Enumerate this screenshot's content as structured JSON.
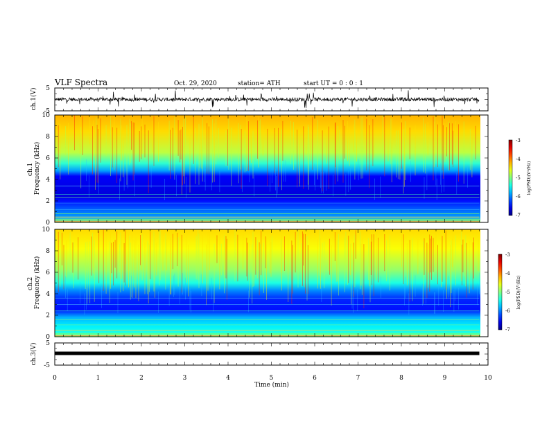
{
  "header": {
    "title": "VLF Spectra",
    "date": "Oct. 29, 2020",
    "station": "station= ATH",
    "start_ut": "start  UT =  0 : 0 : 1"
  },
  "chart_data": [
    {
      "type": "line",
      "name": "ch1-waveform",
      "ylabel": "ch.1(V)",
      "ylim": [
        -5,
        5
      ],
      "yticks": [
        "5",
        "-5"
      ],
      "xlim": [
        0,
        10
      ],
      "data_end_min": 9.8,
      "baseline_v": 0.0
    },
    {
      "type": "heatmap",
      "name": "ch1-spectrogram",
      "ylabel": "ch.1\nFrequency (kHz)",
      "ylim": [
        0,
        10
      ],
      "yticks": [
        "0",
        "2",
        "4",
        "6",
        "8",
        "10"
      ],
      "xlim": [
        0,
        10
      ],
      "data_end_min": 9.8,
      "colorbar": {
        "label": "log(PSD)(V²/Hz)",
        "range": [
          -7,
          -3
        ],
        "ticks": [
          "-3",
          "-4",
          "-5",
          "-6",
          "-7"
        ]
      }
    },
    {
      "type": "heatmap",
      "name": "ch2-spectrogram",
      "ylabel": "ch.2\nFrequency (kHz)",
      "ylim": [
        0,
        10
      ],
      "yticks": [
        "0",
        "2",
        "4",
        "6",
        "8",
        "10"
      ],
      "xlim": [
        0,
        10
      ],
      "data_end_min": 9.8,
      "colorbar": {
        "label": "log(PSD)(V²/Hz)",
        "range": [
          -7,
          -3
        ],
        "ticks": [
          "-3",
          "-4",
          "-5",
          "-6",
          "-7"
        ]
      }
    },
    {
      "type": "line",
      "name": "ch3-waveform",
      "ylabel": "ch.3(V)",
      "ylim": [
        -5,
        5
      ],
      "yticks": [
        "5",
        "-5"
      ],
      "xlim": [
        0,
        10
      ],
      "data_end_min": 9.8,
      "baseline_v": 0.0
    }
  ],
  "x_axis": {
    "label": "Time (min)",
    "ticks": [
      "0",
      "1",
      "2",
      "3",
      "4",
      "5",
      "6",
      "7",
      "8",
      "9",
      "10"
    ]
  }
}
